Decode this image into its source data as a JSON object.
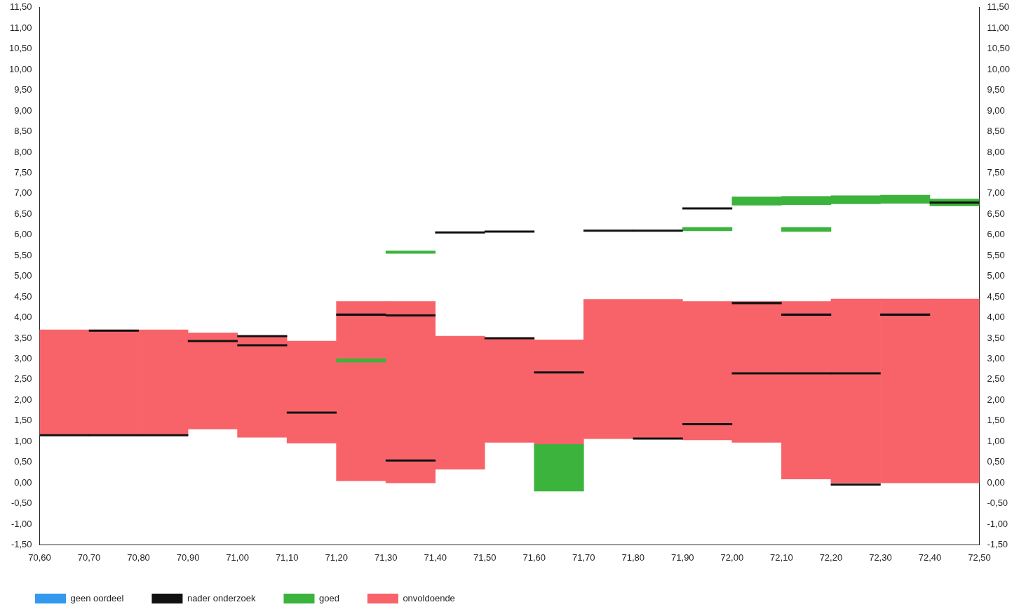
{
  "chart_data": {
    "type": "bar",
    "x": [
      70.65,
      70.75,
      70.85,
      70.95,
      71.05,
      71.15,
      71.25,
      71.35,
      71.45,
      71.55,
      71.65,
      71.75,
      71.85,
      71.95,
      72.05,
      72.15,
      72.25,
      72.35,
      72.45
    ],
    "series": [
      {
        "name": "goed",
        "color": "#3cb33c",
        "base": [
          null,
          null,
          null,
          null,
          null,
          null,
          2.92,
          5.55,
          null,
          null,
          -0.2,
          null,
          null,
          6.1,
          6.72,
          6.73,
          6.75,
          6.76,
          6.7
        ],
        "values": [
          null,
          null,
          null,
          null,
          null,
          null,
          0.08,
          0.06,
          null,
          null,
          1.13,
          null,
          null,
          0.08,
          0.2,
          0.2,
          0.2,
          0.2,
          0.17
        ]
      },
      {
        "name": "onvoldoende",
        "color": "#f8636a",
        "base": [
          1.15,
          1.15,
          1.15,
          1.3,
          1.1,
          0.96,
          0.05,
          0,
          0.33,
          0.98,
          0.93,
          1.07,
          1.07,
          1.04,
          0.98,
          0.09,
          0,
          0,
          0
        ],
        "values": [
          2.55,
          2.55,
          2.55,
          2.33,
          2.45,
          2.47,
          4.34,
          4.39,
          3.22,
          2.52,
          2.53,
          3.37,
          3.37,
          3.35,
          3.41,
          4.3,
          4.45,
          4.45,
          4.45
        ]
      },
      {
        "name": "geen oordeel",
        "color": "#3399ee",
        "base": [
          null,
          null,
          null,
          null,
          null,
          null,
          null,
          null,
          null,
          null,
          null,
          null,
          null,
          null,
          null,
          null,
          null,
          null,
          null
        ],
        "values": [
          null,
          null,
          null,
          null,
          null,
          null,
          null,
          null,
          null,
          null,
          null,
          null,
          null,
          null,
          null,
          null,
          null,
          null,
          null
        ]
      },
      {
        "name": "nader onderzoek",
        "color": "#111111",
        "base": [
          1.13,
          3.66,
          1.13,
          3.41,
          3.31,
          1.68,
          4.05,
          4.03,
          6.04,
          6.06,
          2.65,
          6.08,
          6.08,
          6.62,
          4.33,
          4.05,
          -0.06,
          4.05,
          6.76
        ],
        "values": [
          0.04,
          0.04,
          0.04,
          0.04,
          0.04,
          0.04,
          0.04,
          0.04,
          0.04,
          0.04,
          0.04,
          0.04,
          0.04,
          0.04,
          0.04,
          0.04,
          0.04,
          0.04,
          0.04
        ]
      },
      {
        "color": "#111111",
        "base": [
          null,
          1.13,
          null,
          null,
          3.53,
          null,
          null,
          0.52,
          null,
          3.48,
          null,
          null,
          1.05,
          1.4,
          2.63,
          2.63,
          2.63,
          null,
          null
        ],
        "values": [
          null,
          0.04,
          null,
          null,
          0.04,
          null,
          null,
          0.04,
          null,
          0.04,
          null,
          null,
          0.04,
          0.04,
          0.04,
          0.04,
          0.04,
          null,
          null
        ]
      },
      {
        "color": "#3cb33c",
        "base": [
          null,
          null,
          null,
          null,
          null,
          null,
          null,
          null,
          null,
          null,
          null,
          null,
          null,
          null,
          null,
          6.08,
          null,
          null,
          null
        ],
        "values": [
          null,
          null,
          null,
          null,
          null,
          null,
          null,
          null,
          null,
          null,
          null,
          null,
          null,
          null,
          null,
          0.1,
          null,
          null,
          null
        ]
      }
    ],
    "xlim": [
      70.6,
      72.5
    ],
    "xticks": [
      {
        "value": 70.6,
        "label": "70,60"
      },
      {
        "value": 70.7,
        "label": "70,70"
      },
      {
        "value": 70.8,
        "label": "70,80"
      },
      {
        "value": 70.9,
        "label": "70,90"
      },
      {
        "value": 71.0,
        "label": "71,00"
      },
      {
        "value": 71.1,
        "label": "71,10"
      },
      {
        "value": 71.2,
        "label": "71,20"
      },
      {
        "value": 71.3,
        "label": "71,30"
      },
      {
        "value": 71.4,
        "label": "71,40"
      },
      {
        "value": 71.5,
        "label": "71,50"
      },
      {
        "value": 71.6,
        "label": "71,60"
      },
      {
        "value": 71.7,
        "label": "71,70"
      },
      {
        "value": 71.8,
        "label": "71,80"
      },
      {
        "value": 71.9,
        "label": "71,90"
      },
      {
        "value": 72.0,
        "label": "72,00"
      },
      {
        "value": 72.1,
        "label": "72,10"
      },
      {
        "value": 72.2,
        "label": "72,20"
      },
      {
        "value": 72.3,
        "label": "72,30"
      },
      {
        "value": 72.4,
        "label": "72,40"
      },
      {
        "value": 72.5,
        "label": "72,50"
      }
    ],
    "ylim": [
      -1.5,
      11.5
    ],
    "yticks": [
      {
        "value": -1.5,
        "label": "-1,50"
      },
      {
        "value": -1,
        "label": "-1,00"
      },
      {
        "value": -0.5,
        "label": "-0,50"
      },
      {
        "value": 0,
        "label": "0,00"
      },
      {
        "value": 0.5,
        "label": "0,50"
      },
      {
        "value": 1,
        "label": "1,00"
      },
      {
        "value": 1.5,
        "label": "1,50"
      },
      {
        "value": 2,
        "label": "2,00"
      },
      {
        "value": 2.5,
        "label": "2,50"
      },
      {
        "value": 3,
        "label": "3,00"
      },
      {
        "value": 3.5,
        "label": "3,50"
      },
      {
        "value": 4,
        "label": "4,00"
      },
      {
        "value": 4.5,
        "label": "4,50"
      },
      {
        "value": 5,
        "label": "5,00"
      },
      {
        "value": 5.5,
        "label": "5,50"
      },
      {
        "value": 6,
        "label": "6,00"
      },
      {
        "value": 6.5,
        "label": "6,50"
      },
      {
        "value": 7,
        "label": "7,00"
      },
      {
        "value": 7.5,
        "label": "7,50"
      },
      {
        "value": 8,
        "label": "8,00"
      },
      {
        "value": 8.5,
        "label": "8,50"
      },
      {
        "value": 9,
        "label": "9,00"
      },
      {
        "value": 9.5,
        "label": "9,50"
      },
      {
        "value": 10,
        "label": "10,00"
      },
      {
        "value": 10.5,
        "label": "10,50"
      },
      {
        "value": 11,
        "label": "11,00"
      },
      {
        "value": 11.5,
        "label": "11,50"
      }
    ],
    "y2lim": [
      -1.5,
      11.5
    ],
    "y2ticks": [
      {
        "value": -1.5,
        "label": "-1,50"
      },
      {
        "value": -1,
        "label": "-1,00"
      },
      {
        "value": -0.5,
        "label": "-0,50"
      },
      {
        "value": 0,
        "label": "0,00"
      },
      {
        "value": 0.5,
        "label": "0,50"
      },
      {
        "value": 1,
        "label": "1,00"
      },
      {
        "value": 1.5,
        "label": "1,50"
      },
      {
        "value": 2,
        "label": "2,00"
      },
      {
        "value": 2.5,
        "label": "2,50"
      },
      {
        "value": 3,
        "label": "3,00"
      },
      {
        "value": 3.5,
        "label": "3,50"
      },
      {
        "value": 4,
        "label": "4,00"
      },
      {
        "value": 4.5,
        "label": "4,50"
      },
      {
        "value": 5,
        "label": "5,00"
      },
      {
        "value": 5.5,
        "label": "5,50"
      },
      {
        "value": 6,
        "label": "6,00"
      },
      {
        "value": 6.5,
        "label": "6,50"
      },
      {
        "value": 7,
        "label": "7,00"
      },
      {
        "value": 7.5,
        "label": "7,50"
      },
      {
        "value": 8,
        "label": "8,00"
      },
      {
        "value": 8.5,
        "label": "8,50"
      },
      {
        "value": 9,
        "label": "9,00"
      },
      {
        "value": 9.5,
        "label": "9,50"
      },
      {
        "value": 10,
        "label": "10,00"
      },
      {
        "value": 10.5,
        "label": "10,50"
      },
      {
        "value": 11,
        "label": "11,00"
      },
      {
        "value": 11.5,
        "label": "11,50"
      }
    ],
    "grid": false,
    "legend": "bottom left"
  }
}
